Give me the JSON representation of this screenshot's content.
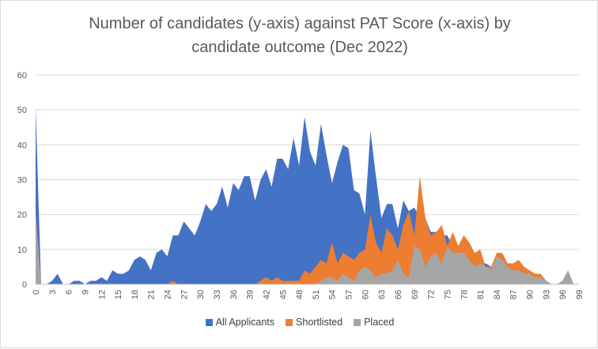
{
  "chart_data": {
    "type": "area",
    "title": [
      "Number of candidates (y-axis) against PAT Score (x-axis) by",
      "candidate outcome (Dec 2022)"
    ],
    "xlabel": "",
    "ylabel": "",
    "xlim": [
      0,
      99
    ],
    "ylim": [
      0,
      60
    ],
    "yticks": [
      0,
      10,
      20,
      30,
      40,
      50,
      60
    ],
    "xticks": [
      0,
      3,
      6,
      9,
      12,
      15,
      18,
      21,
      24,
      27,
      30,
      33,
      36,
      39,
      42,
      45,
      48,
      51,
      54,
      57,
      60,
      63,
      66,
      69,
      72,
      75,
      78,
      81,
      84,
      87,
      90,
      93,
      96,
      99
    ],
    "grid": "horizontal",
    "legend_position": "bottom",
    "series": [
      {
        "name": "All Applicants",
        "color": "#4472c4",
        "values": [
          51,
          0,
          0,
          1,
          3,
          0,
          0,
          1,
          1,
          0,
          1,
          1,
          2,
          1,
          4,
          3,
          3,
          4,
          7,
          8,
          7,
          4,
          9,
          10,
          8,
          14,
          14,
          18,
          16,
          14,
          18,
          23,
          21,
          23,
          28,
          22,
          29,
          27,
          31,
          31,
          24,
          30,
          33,
          28,
          36,
          36,
          33,
          42,
          34,
          48,
          38,
          34,
          46,
          37,
          29,
          35,
          40,
          39,
          27,
          26,
          20,
          44,
          31,
          19,
          23,
          23,
          16,
          24,
          21,
          22,
          19,
          19,
          15,
          15,
          14,
          14,
          11,
          10,
          9,
          8,
          7,
          6,
          6,
          5,
          5,
          6,
          5,
          5,
          4,
          3,
          3,
          2,
          3,
          1,
          0,
          0,
          1,
          4,
          0,
          0
        ]
      },
      {
        "name": "Shortlisted",
        "color": "#ed7d31",
        "values": [
          21,
          0,
          0,
          0,
          0,
          0,
          0,
          0,
          0,
          0,
          0,
          0,
          0,
          0,
          0,
          0,
          0,
          0,
          0,
          0,
          0,
          0,
          0,
          0,
          0,
          1,
          0,
          0,
          0,
          0,
          0,
          0,
          0,
          0,
          0,
          0,
          0,
          0,
          0,
          0,
          0,
          1,
          2,
          1,
          2,
          1,
          1,
          1,
          1,
          4,
          3,
          5,
          7,
          6,
          12,
          6,
          9,
          8,
          7,
          9,
          10,
          20,
          12,
          9,
          16,
          14,
          10,
          17,
          21,
          14,
          31,
          19,
          14,
          15,
          17,
          11,
          15,
          11,
          14,
          12,
          9,
          10,
          5,
          5,
          9,
          9,
          6,
          6,
          7,
          5,
          4,
          3,
          3,
          1,
          0,
          0,
          0,
          0,
          0,
          0
        ]
      },
      {
        "name": "Placed",
        "color": "#a5a5a5",
        "values": [
          20,
          0,
          0,
          0,
          0,
          0,
          0,
          0,
          0,
          0,
          0,
          0,
          0,
          0,
          0,
          0,
          0,
          0,
          0,
          0,
          0,
          0,
          0,
          0,
          0,
          0,
          0,
          0,
          0,
          0,
          0,
          0,
          0,
          0,
          0,
          0,
          0,
          0,
          0,
          0,
          0,
          0,
          0,
          0,
          0,
          0,
          0,
          0,
          0,
          0,
          0,
          0,
          1,
          2,
          2,
          1,
          3,
          2,
          1,
          4,
          5,
          4,
          2,
          3,
          3,
          4,
          7,
          3,
          2,
          11,
          10,
          5,
          8,
          9,
          6,
          11,
          9,
          9,
          9,
          7,
          5,
          6,
          5,
          4,
          8,
          7,
          5,
          4,
          4,
          3,
          3,
          2,
          2,
          1,
          0,
          0,
          1,
          4,
          0,
          0
        ]
      }
    ]
  }
}
